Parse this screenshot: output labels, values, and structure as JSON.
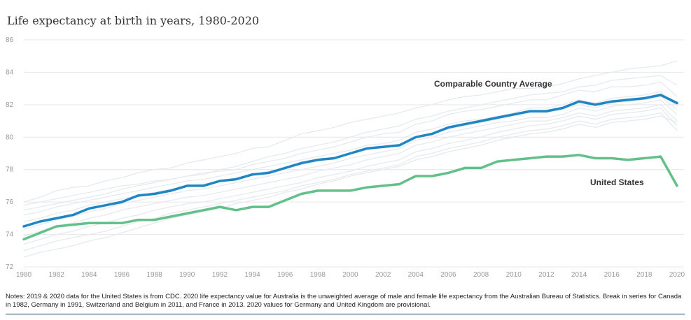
{
  "title": "Life expectancy at birth in years, 1980-2020",
  "notes": "Notes: 2019 & 2020 data for the United States is from CDC. 2020 life expectancy value for Australia is the unweighted average of male and female life expectancy from the Australian Bureau of Statistics. Break in series for Canada in 1982, Germany in 1991, Switzerland and Belgium in 2011, and France in 2013. 2020 values for Germany and United Kingdom are provisional.",
  "colors": {
    "comparable": "#1f86c4",
    "us": "#63c08a",
    "background_countries": "#e6eaee",
    "grid": "#e6e6e6"
  },
  "chart_data": {
    "type": "line",
    "title": "Life expectancy at birth in years, 1980-2020",
    "x": [
      1980,
      1981,
      1982,
      1983,
      1984,
      1985,
      1986,
      1987,
      1988,
      1989,
      1990,
      1991,
      1992,
      1993,
      1994,
      1995,
      1996,
      1997,
      1998,
      1999,
      2000,
      2001,
      2002,
      2003,
      2004,
      2005,
      2006,
      2007,
      2008,
      2009,
      2010,
      2011,
      2012,
      2013,
      2014,
      2015,
      2016,
      2017,
      2018,
      2019,
      2020
    ],
    "xticks": [
      1980,
      1982,
      1984,
      1986,
      1988,
      1990,
      1992,
      1994,
      1996,
      1998,
      2000,
      2002,
      2004,
      2006,
      2008,
      2010,
      2012,
      2014,
      2016,
      2018,
      2020
    ],
    "yticks": [
      72,
      74,
      76,
      78,
      80,
      82,
      84,
      86
    ],
    "ylim": [
      72,
      86
    ],
    "grid": true,
    "series": [
      {
        "name": "Comparable Country Average",
        "color": "#1f86c4",
        "values": [
          74.5,
          74.8,
          75.0,
          75.2,
          75.6,
          75.8,
          76.0,
          76.4,
          76.5,
          76.7,
          77.0,
          77.0,
          77.3,
          77.4,
          77.7,
          77.8,
          78.1,
          78.4,
          78.6,
          78.7,
          79.0,
          79.3,
          79.4,
          79.5,
          80.0,
          80.2,
          80.6,
          80.8,
          81.0,
          81.2,
          81.4,
          81.6,
          81.6,
          81.8,
          82.2,
          82.0,
          82.2,
          82.3,
          82.4,
          82.6,
          82.1
        ]
      },
      {
        "name": "United States",
        "color": "#63c08a",
        "values": [
          73.7,
          74.1,
          74.5,
          74.6,
          74.7,
          74.7,
          74.7,
          74.9,
          74.9,
          75.1,
          75.3,
          75.5,
          75.7,
          75.5,
          75.7,
          75.7,
          76.1,
          76.5,
          76.7,
          76.7,
          76.7,
          76.9,
          77.0,
          77.1,
          77.6,
          77.6,
          77.8,
          78.1,
          78.1,
          78.5,
          78.6,
          78.7,
          78.8,
          78.8,
          78.9,
          78.7,
          78.7,
          78.6,
          78.7,
          78.8,
          77.0
        ]
      }
    ],
    "background_series": [
      {
        "values": [
          76.0,
          76.3,
          76.7,
          76.9,
          77.0,
          77.3,
          77.5,
          77.8,
          78.0,
          78.1,
          78.4,
          78.6,
          78.8,
          79.0,
          79.3,
          79.4,
          79.8,
          80.2,
          80.4,
          80.6,
          80.9,
          81.1,
          81.3,
          81.5,
          81.8,
          82.0,
          82.3,
          82.5,
          82.6,
          82.8,
          83.0,
          83.0,
          83.1,
          83.3,
          83.6,
          83.8,
          84.0,
          84.2,
          84.3,
          84.4,
          84.7
        ]
      },
      {
        "values": [
          75.8,
          76.0,
          76.2,
          76.4,
          76.6,
          76.8,
          77.0,
          77.1,
          77.3,
          77.4,
          77.6,
          77.7,
          78.0,
          78.2,
          78.5,
          78.8,
          79.0,
          79.3,
          79.5,
          79.7,
          80.0,
          80.3,
          80.5,
          80.7,
          81.1,
          81.3,
          81.6,
          81.8,
          82.0,
          82.2,
          82.4,
          82.6,
          82.7,
          82.8,
          83.1,
          83.2,
          83.5,
          83.6,
          83.7,
          83.8,
          83.2
        ]
      },
      {
        "values": [
          75.5,
          75.7,
          75.9,
          76.1,
          76.3,
          76.5,
          76.8,
          77.0,
          77.2,
          77.4,
          77.6,
          77.8,
          77.9,
          78.0,
          78.3,
          78.5,
          78.7,
          79.0,
          79.2,
          79.4,
          79.7,
          80.0,
          80.2,
          80.3,
          80.8,
          81.0,
          81.4,
          81.6,
          81.7,
          81.9,
          82.1,
          82.3,
          82.3,
          82.6,
          82.9,
          82.8,
          83.1,
          83.1,
          83.2,
          83.4,
          82.5
        ]
      },
      {
        "values": [
          75.2,
          75.4,
          75.7,
          75.9,
          76.1,
          76.3,
          76.5,
          76.7,
          76.9,
          77.1,
          77.3,
          77.4,
          77.6,
          77.8,
          78.0,
          78.2,
          78.4,
          78.6,
          78.8,
          79.0,
          79.2,
          79.5,
          79.6,
          79.8,
          80.3,
          80.5,
          80.8,
          81.0,
          81.1,
          81.3,
          81.5,
          81.8,
          81.8,
          82.0,
          82.3,
          82.1,
          82.4,
          82.5,
          82.6,
          82.8,
          81.9
        ]
      },
      {
        "values": [
          74.8,
          75.0,
          75.3,
          75.5,
          75.8,
          76.0,
          76.2,
          76.4,
          76.6,
          76.8,
          77.0,
          77.1,
          77.3,
          77.5,
          77.7,
          77.9,
          78.1,
          78.3,
          78.5,
          78.7,
          79.0,
          79.2,
          79.4,
          79.5,
          80.0,
          80.2,
          80.5,
          80.7,
          80.9,
          81.1,
          81.3,
          81.5,
          81.5,
          81.7,
          82.0,
          81.8,
          82.1,
          82.2,
          82.3,
          82.5,
          81.7
        ]
      },
      {
        "values": [
          74.3,
          74.6,
          74.9,
          75.1,
          75.4,
          75.6,
          75.9,
          76.1,
          76.3,
          76.5,
          76.7,
          76.8,
          77.0,
          77.2,
          77.4,
          77.6,
          77.8,
          78.0,
          78.2,
          78.4,
          78.7,
          78.9,
          79.1,
          79.3,
          79.8,
          80.0,
          80.3,
          80.5,
          80.7,
          80.9,
          81.0,
          81.2,
          81.2,
          81.4,
          81.8,
          81.6,
          81.9,
          82.0,
          82.1,
          82.3,
          81.4
        ]
      },
      {
        "values": [
          73.9,
          74.2,
          74.5,
          74.7,
          75.0,
          75.2,
          75.5,
          75.7,
          75.9,
          76.1,
          76.3,
          76.4,
          76.6,
          76.8,
          77.0,
          77.2,
          77.4,
          77.6,
          77.9,
          78.1,
          78.3,
          78.6,
          78.8,
          79.0,
          79.5,
          79.7,
          80.0,
          80.2,
          80.4,
          80.6,
          80.8,
          81.0,
          81.0,
          81.2,
          81.5,
          81.3,
          81.6,
          81.7,
          81.8,
          82.0,
          81.0
        ]
      },
      {
        "values": [
          73.4,
          73.7,
          74.0,
          74.2,
          74.5,
          74.7,
          75.0,
          75.2,
          75.5,
          75.7,
          75.9,
          76.0,
          76.2,
          76.4,
          76.6,
          76.8,
          77.0,
          77.2,
          77.5,
          77.7,
          77.9,
          78.2,
          78.4,
          78.6,
          79.1,
          79.3,
          79.6,
          79.8,
          80.0,
          80.3,
          80.5,
          80.7,
          80.8,
          81.0,
          81.3,
          81.1,
          81.4,
          81.5,
          81.6,
          81.8,
          80.7
        ]
      },
      {
        "values": [
          73.0,
          73.3,
          73.6,
          73.8,
          74.0,
          74.2,
          74.5,
          74.8,
          75.0,
          75.3,
          75.5,
          75.7,
          75.9,
          76.1,
          76.3,
          76.5,
          76.7,
          77.0,
          77.2,
          77.4,
          77.7,
          77.9,
          78.1,
          78.3,
          78.8,
          79.0,
          79.3,
          79.5,
          79.7,
          80.0,
          80.2,
          80.4,
          80.5,
          80.7,
          81.0,
          80.8,
          81.1,
          81.2,
          81.3,
          81.5,
          80.4
        ]
      },
      {
        "values": [
          72.6,
          72.9,
          73.1,
          73.3,
          73.6,
          73.8,
          74.1,
          74.4,
          74.7,
          75.0,
          75.2,
          75.4,
          75.6,
          75.9,
          76.1,
          76.3,
          76.6,
          76.8,
          77.1,
          77.3,
          77.6,
          77.8,
          78.0,
          78.2,
          78.6,
          78.8,
          79.1,
          79.3,
          79.5,
          79.8,
          80.0,
          80.2,
          80.3,
          80.5,
          80.8,
          80.6,
          80.9,
          81.0,
          81.1,
          81.3,
          80.9
        ]
      }
    ]
  }
}
